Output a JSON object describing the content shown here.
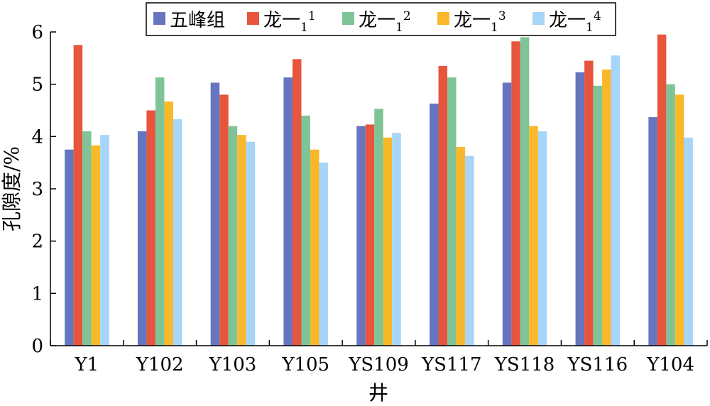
{
  "chart_data": {
    "type": "bar",
    "title": "",
    "xlabel": "井",
    "ylabel": "孔隙度/%",
    "ylim": [
      0,
      6
    ],
    "yticks": [
      "0",
      "1",
      "2",
      "3",
      "4",
      "5",
      "6"
    ],
    "grid": false,
    "legend_position": "top",
    "categories": [
      "Y1",
      "Y102",
      "Y103",
      "Y105",
      "YS109",
      "YS117",
      "YS118",
      "YS116",
      "Y104"
    ],
    "series": [
      {
        "name": "五峰组",
        "label_main": "五峰组",
        "label_sub": "",
        "label_sup": "",
        "color": "#6675BF",
        "values": [
          3.75,
          4.1,
          5.03,
          5.13,
          4.2,
          4.63,
          5.03,
          5.23,
          4.37
        ]
      },
      {
        "name": "龙一11",
        "label_main": "龙一",
        "label_sub": "1",
        "label_sup": "1",
        "color": "#E8553D",
        "values": [
          5.75,
          4.5,
          4.8,
          5.48,
          4.23,
          5.35,
          5.82,
          5.45,
          5.95
        ]
      },
      {
        "name": "龙一12",
        "label_main": "龙一",
        "label_sub": "1",
        "label_sup": "2",
        "color": "#7FC497",
        "values": [
          4.1,
          5.13,
          4.2,
          4.4,
          4.53,
          5.13,
          5.9,
          4.97,
          5.0
        ]
      },
      {
        "name": "龙一13",
        "label_main": "龙一",
        "label_sub": "1",
        "label_sup": "3",
        "color": "#F9B82A",
        "values": [
          3.83,
          4.67,
          4.03,
          3.75,
          3.98,
          3.8,
          4.2,
          5.28,
          4.8
        ]
      },
      {
        "name": "龙一14",
        "label_main": "龙一",
        "label_sub": "1",
        "label_sup": "4",
        "color": "#A6D5F7",
        "values": [
          4.03,
          4.33,
          3.9,
          3.5,
          4.07,
          3.63,
          4.1,
          5.55,
          3.98
        ]
      }
    ]
  }
}
